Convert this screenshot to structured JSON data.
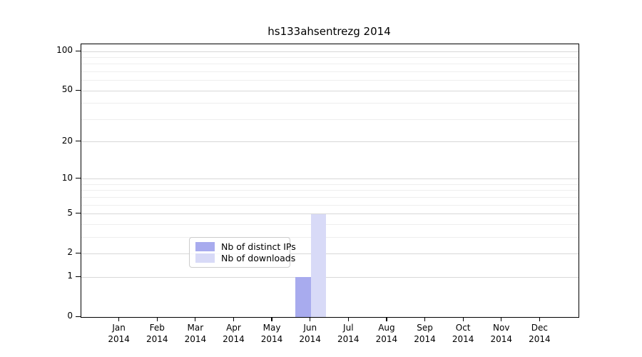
{
  "chart_data": {
    "type": "bar",
    "title": "hs133ahsentrezg 2014",
    "x_categories": [
      "Jan",
      "Feb",
      "Mar",
      "Apr",
      "May",
      "Jun",
      "Jul",
      "Aug",
      "Sep",
      "Oct",
      "Nov",
      "Dec"
    ],
    "x_year_label": "2014",
    "y_axis": {
      "scale": "log1p",
      "major_ticks": [
        0,
        1,
        2,
        5,
        10,
        20,
        50,
        100
      ],
      "minor_gridlines": [
        3,
        4,
        6,
        7,
        8,
        9,
        30,
        40,
        60,
        70,
        80,
        90
      ],
      "top_labeled_tick": 100
    },
    "series": [
      {
        "name": "Nb of distinct IPs",
        "color": "#a8abee",
        "values": [
          0,
          0,
          0,
          0,
          0,
          1,
          0,
          0,
          0,
          0,
          0,
          0
        ]
      },
      {
        "name": "Nb of downloads",
        "color": "#d8daf7",
        "values": [
          0,
          0,
          0,
          0,
          0,
          5,
          0,
          0,
          0,
          0,
          0,
          0
        ]
      }
    ],
    "legend_position": "bottom-center",
    "grid": true
  },
  "colors": {
    "background": "#ffffff",
    "axis": "#000000",
    "grid_major": "#d8d8d8",
    "grid_minor": "#eeeeee",
    "legend_border": "#cccccc",
    "series_distinct_ips": "#a8abee",
    "series_downloads": "#d8daf7"
  }
}
